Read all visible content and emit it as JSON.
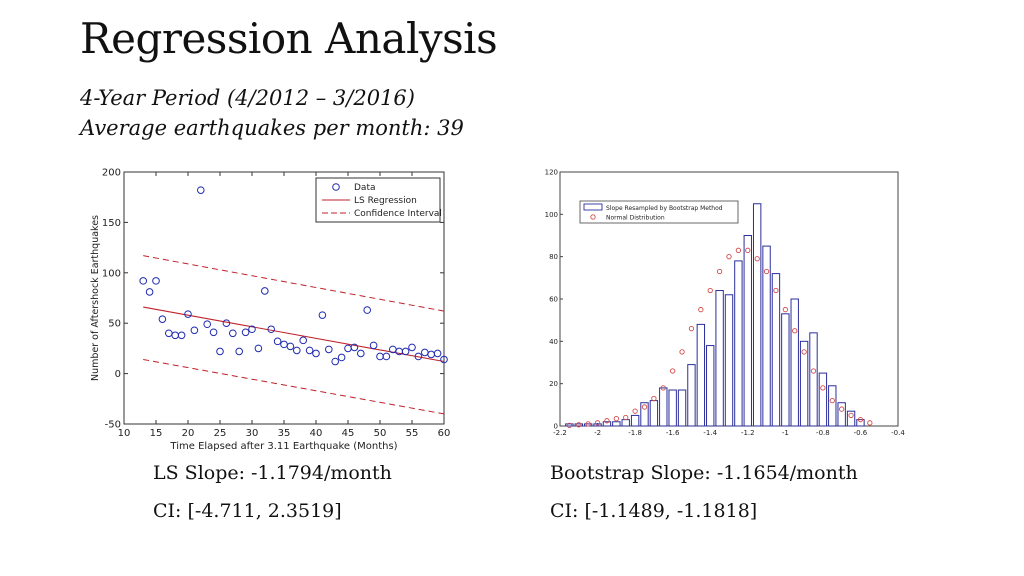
{
  "page": {
    "title": "Regression Analysis",
    "subtitle1": "4-Year Period (4/2012 – 3/2016)",
    "subtitle2": "Average earthquakes per month: 39",
    "ls_slope": "LS Slope: -1.1794/month",
    "ls_ci": "CI: [-4.711, 2.3519]",
    "bs_slope": "Bootstrap Slope: -1.1654/month",
    "bs_ci": "CI: [-1.1489, -1.1818]"
  },
  "colors": {
    "data_marker": "#1f2bb0",
    "regression": "#c0212a",
    "histogram_bar": "#2b2f9a",
    "normal_marker": "#d24a4a"
  },
  "chart_data": [
    {
      "type": "scatter",
      "title": "",
      "xlabel": "Time Elapsed after 3.11 Earthquake (Months)",
      "ylabel": "Number of Aftershock Earthquakes",
      "xlim": [
        10,
        60
      ],
      "ylim": [
        -50,
        200
      ],
      "xticks": [
        10,
        15,
        20,
        25,
        30,
        35,
        40,
        45,
        50,
        55,
        60
      ],
      "yticks": [
        -50,
        0,
        50,
        100,
        150,
        200
      ],
      "legend_position": "top-right",
      "legend": [
        "Data",
        "LS Regression",
        "Confidence Interval"
      ],
      "series": [
        {
          "name": "Data",
          "points": [
            [
              13,
              92
            ],
            [
              14,
              81
            ],
            [
              15,
              92
            ],
            [
              16,
              54
            ],
            [
              17,
              40
            ],
            [
              18,
              38
            ],
            [
              19,
              38
            ],
            [
              20,
              59
            ],
            [
              21,
              43
            ],
            [
              22,
              182
            ],
            [
              23,
              49
            ],
            [
              24,
              41
            ],
            [
              25,
              22
            ],
            [
              26,
              50
            ],
            [
              27,
              40
            ],
            [
              28,
              22
            ],
            [
              29,
              41
            ],
            [
              30,
              44
            ],
            [
              31,
              25
            ],
            [
              32,
              82
            ],
            [
              33,
              44
            ],
            [
              34,
              32
            ],
            [
              35,
              29
            ],
            [
              36,
              27
            ],
            [
              37,
              23
            ],
            [
              38,
              33
            ],
            [
              39,
              23
            ],
            [
              40,
              20
            ],
            [
              41,
              58
            ],
            [
              42,
              24
            ],
            [
              43,
              12
            ],
            [
              44,
              16
            ],
            [
              45,
              25
            ],
            [
              46,
              26
            ],
            [
              47,
              20
            ],
            [
              48,
              63
            ],
            [
              49,
              28
            ],
            [
              50,
              17
            ],
            [
              51,
              17
            ],
            [
              52,
              24
            ],
            [
              53,
              22
            ],
            [
              54,
              22
            ],
            [
              55,
              26
            ],
            [
              56,
              17
            ],
            [
              57,
              21
            ],
            [
              58,
              19
            ],
            [
              59,
              20
            ],
            [
              60,
              14
            ]
          ]
        },
        {
          "name": "LS Regression",
          "line": [
            [
              13,
              66
            ],
            [
              60,
              12
            ]
          ]
        },
        {
          "name": "Confidence Interval",
          "upper": [
            [
              13,
              117
            ],
            [
              60,
              62
            ]
          ],
          "lower": [
            [
              13,
              14
            ],
            [
              60,
              -40
            ]
          ]
        }
      ]
    },
    {
      "type": "bar",
      "title": "",
      "xlim": [
        -2.2,
        -0.4
      ],
      "ylim": [
        0,
        120
      ],
      "xticks": [
        -2.2,
        -2,
        -1.8,
        -1.6,
        -1.4,
        -1.2,
        -1,
        -0.8,
        -0.6,
        -0.4
      ],
      "yticks": [
        0,
        20,
        40,
        60,
        80,
        100,
        120
      ],
      "legend_position": "top-left",
      "legend": [
        "Slope Resampled by Bootstrap Method",
        "Normal Distribution"
      ],
      "bin_width": 0.05,
      "series": [
        {
          "name": "Slope Resampled by Bootstrap Method",
          "bins": [
            [
              -2.15,
              1
            ],
            [
              -2.1,
              1
            ],
            [
              -2.05,
              1
            ],
            [
              -2.0,
              1
            ],
            [
              -1.95,
              2
            ],
            [
              -1.9,
              2
            ],
            [
              -1.85,
              3
            ],
            [
              -1.8,
              5
            ],
            [
              -1.75,
              11
            ],
            [
              -1.7,
              12
            ],
            [
              -1.65,
              18
            ],
            [
              -1.6,
              17
            ],
            [
              -1.55,
              17
            ],
            [
              -1.5,
              29
            ],
            [
              -1.45,
              48
            ],
            [
              -1.4,
              38
            ],
            [
              -1.35,
              64
            ],
            [
              -1.3,
              62
            ],
            [
              -1.25,
              78
            ],
            [
              -1.2,
              90
            ],
            [
              -1.15,
              105
            ],
            [
              -1.1,
              85
            ],
            [
              -1.05,
              72
            ],
            [
              -1.0,
              53
            ],
            [
              -0.95,
              60
            ],
            [
              -0.9,
              40
            ],
            [
              -0.85,
              44
            ],
            [
              -0.8,
              25
            ],
            [
              -0.75,
              19
            ],
            [
              -0.7,
              11
            ],
            [
              -0.65,
              7
            ],
            [
              -0.6,
              3
            ]
          ]
        },
        {
          "name": "Normal Distribution",
          "points": [
            [
              -2.15,
              0.3
            ],
            [
              -2.1,
              0.6
            ],
            [
              -2.05,
              1
            ],
            [
              -2.0,
              1.5
            ],
            [
              -1.95,
              2.5
            ],
            [
              -1.9,
              3.5
            ],
            [
              -1.85,
              4
            ],
            [
              -1.8,
              7
            ],
            [
              -1.75,
              9
            ],
            [
              -1.7,
              13
            ],
            [
              -1.65,
              18
            ],
            [
              -1.6,
              26
            ],
            [
              -1.55,
              35
            ],
            [
              -1.5,
              46
            ],
            [
              -1.45,
              55
            ],
            [
              -1.4,
              64
            ],
            [
              -1.35,
              73
            ],
            [
              -1.3,
              80
            ],
            [
              -1.25,
              83
            ],
            [
              -1.2,
              83
            ],
            [
              -1.15,
              79
            ],
            [
              -1.1,
              73
            ],
            [
              -1.05,
              64
            ],
            [
              -1.0,
              55
            ],
            [
              -0.95,
              45
            ],
            [
              -0.9,
              35
            ],
            [
              -0.85,
              26
            ],
            [
              -0.8,
              18
            ],
            [
              -0.75,
              12
            ],
            [
              -0.7,
              8
            ],
            [
              -0.65,
              5
            ],
            [
              -0.6,
              3
            ],
            [
              -0.55,
              1.5
            ]
          ]
        }
      ]
    }
  ]
}
